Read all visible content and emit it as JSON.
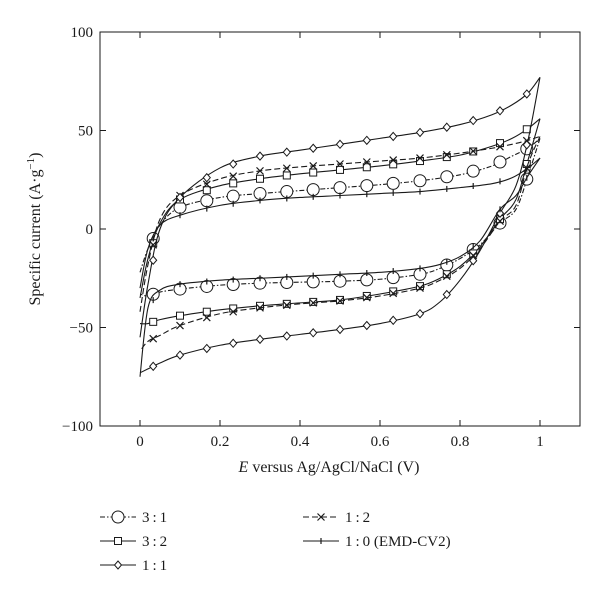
{
  "chart_data": {
    "type": "line",
    "title": "",
    "xlabel": {
      "italic": "E",
      "rest": " versus Ag/AgCl/NaCl (V)"
    },
    "ylabel": {
      "main": "Specific current (A·g",
      "sup": "−1",
      "close": ")"
    },
    "xlim": [
      -0.1,
      1.1
    ],
    "ylim": [
      -100,
      100
    ],
    "xticks": [
      0,
      0.2,
      0.4,
      0.6,
      0.8,
      1
    ],
    "xtick_labels": [
      "0",
      "0.2",
      "0.4",
      "0.6",
      "0.8",
      "1"
    ],
    "yticks": [
      -100,
      -50,
      0,
      50,
      100
    ],
    "ytick_labels": [
      "−100",
      "−50",
      "0",
      "50",
      "100"
    ],
    "grid": false,
    "legend_placement": "below-plot",
    "series": [
      {
        "name": "3 : 1",
        "marker": "circle",
        "dash": "dot-dash",
        "forward": [
          [
            0,
            -22
          ],
          [
            0.02,
            -10
          ],
          [
            0.05,
            2
          ],
          [
            0.1,
            11
          ],
          [
            0.2,
            16
          ],
          [
            0.3,
            18
          ],
          [
            0.4,
            19.5
          ],
          [
            0.5,
            21
          ],
          [
            0.6,
            22.5
          ],
          [
            0.7,
            24.5
          ],
          [
            0.8,
            27.5
          ],
          [
            0.88,
            32
          ],
          [
            0.93,
            37
          ],
          [
            0.97,
            41
          ],
          [
            1,
            46
          ]
        ],
        "reverse": [
          [
            1,
            46
          ],
          [
            0.97,
            27
          ],
          [
            0.94,
            10
          ],
          [
            0.9,
            3
          ],
          [
            0.85,
            -8
          ],
          [
            0.8,
            -15
          ],
          [
            0.75,
            -20
          ],
          [
            0.7,
            -23
          ],
          [
            0.6,
            -25.5
          ],
          [
            0.5,
            -26.5
          ],
          [
            0.4,
            -27
          ],
          [
            0.3,
            -27.5
          ],
          [
            0.2,
            -28.5
          ],
          [
            0.1,
            -30.5
          ],
          [
            0.05,
            -32
          ],
          [
            0.02,
            -34
          ],
          [
            0,
            -33
          ]
        ]
      },
      {
        "name": "3 : 2",
        "marker": "square",
        "dash": "solid",
        "forward": [
          [
            0,
            -35
          ],
          [
            0.02,
            -15
          ],
          [
            0.05,
            3
          ],
          [
            0.1,
            15
          ],
          [
            0.2,
            22
          ],
          [
            0.3,
            25.5
          ],
          [
            0.4,
            28
          ],
          [
            0.5,
            30
          ],
          [
            0.6,
            32
          ],
          [
            0.7,
            34.5
          ],
          [
            0.8,
            37.5
          ],
          [
            0.88,
            42
          ],
          [
            0.93,
            46
          ],
          [
            0.97,
            51
          ],
          [
            1,
            56
          ]
        ],
        "reverse": [
          [
            1,
            56
          ],
          [
            0.97,
            35
          ],
          [
            0.94,
            15
          ],
          [
            0.9,
            5
          ],
          [
            0.85,
            -9
          ],
          [
            0.8,
            -19
          ],
          [
            0.75,
            -25
          ],
          [
            0.7,
            -29
          ],
          [
            0.6,
            -33
          ],
          [
            0.5,
            -36
          ],
          [
            0.4,
            -37.5
          ],
          [
            0.3,
            -39
          ],
          [
            0.2,
            -41
          ],
          [
            0.1,
            -44
          ],
          [
            0.05,
            -46
          ],
          [
            0.02,
            -48
          ],
          [
            0,
            -48
          ]
        ]
      },
      {
        "name": "1 : 2",
        "marker": "cross",
        "dash": "dashed",
        "forward": [
          [
            0,
            -42
          ],
          [
            0.02,
            -18
          ],
          [
            0.05,
            5
          ],
          [
            0.1,
            17
          ],
          [
            0.2,
            25.5
          ],
          [
            0.3,
            29.5
          ],
          [
            0.4,
            31.5
          ],
          [
            0.5,
            33
          ],
          [
            0.6,
            34.5
          ],
          [
            0.7,
            36
          ],
          [
            0.8,
            38.5
          ],
          [
            0.88,
            41
          ],
          [
            0.93,
            43
          ],
          [
            0.97,
            45
          ],
          [
            1,
            47
          ]
        ],
        "reverse": [
          [
            1,
            47
          ],
          [
            0.97,
            33
          ],
          [
            0.94,
            12
          ],
          [
            0.9,
            4
          ],
          [
            0.85,
            -10
          ],
          [
            0.8,
            -20
          ],
          [
            0.75,
            -26
          ],
          [
            0.7,
            -30
          ],
          [
            0.6,
            -34
          ],
          [
            0.5,
            -36.5
          ],
          [
            0.4,
            -38
          ],
          [
            0.3,
            -40
          ],
          [
            0.2,
            -43
          ],
          [
            0.1,
            -49
          ],
          [
            0.05,
            -54
          ],
          [
            0.02,
            -57
          ],
          [
            0,
            -62
          ]
        ]
      },
      {
        "name": "1 : 1",
        "marker": "diamond",
        "dash": "solid",
        "forward": [
          [
            0,
            -55
          ],
          [
            0.02,
            -28
          ],
          [
            0.05,
            0
          ],
          [
            0.1,
            16
          ],
          [
            0.2,
            31
          ],
          [
            0.3,
            37
          ],
          [
            0.4,
            40
          ],
          [
            0.5,
            43
          ],
          [
            0.6,
            46
          ],
          [
            0.7,
            49
          ],
          [
            0.8,
            53
          ],
          [
            0.88,
            58
          ],
          [
            0.93,
            63
          ],
          [
            0.97,
            69
          ],
          [
            1,
            77
          ]
        ],
        "reverse": [
          [
            1,
            77
          ],
          [
            0.97,
            45
          ],
          [
            0.94,
            22
          ],
          [
            0.9,
            8
          ],
          [
            0.85,
            -11
          ],
          [
            0.8,
            -26
          ],
          [
            0.75,
            -37
          ],
          [
            0.7,
            -43
          ],
          [
            0.6,
            -48
          ],
          [
            0.5,
            -51
          ],
          [
            0.4,
            -53.5
          ],
          [
            0.3,
            -56
          ],
          [
            0.2,
            -59
          ],
          [
            0.1,
            -64
          ],
          [
            0.05,
            -68
          ],
          [
            0.02,
            -71
          ],
          [
            0,
            -73
          ]
        ]
      },
      {
        "name": "1 : 0 (EMD-CV2)",
        "marker": "plus",
        "dash": "solid",
        "forward": [
          [
            0,
            -30
          ],
          [
            0.02,
            -10
          ],
          [
            0.05,
            2
          ],
          [
            0.1,
            7
          ],
          [
            0.2,
            12
          ],
          [
            0.3,
            14.5
          ],
          [
            0.4,
            16
          ],
          [
            0.5,
            17
          ],
          [
            0.6,
            18
          ],
          [
            0.7,
            19
          ],
          [
            0.8,
            21
          ],
          [
            0.88,
            23
          ],
          [
            0.93,
            26
          ],
          [
            0.97,
            31
          ],
          [
            1,
            36
          ]
        ],
        "reverse": [
          [
            1,
            36
          ],
          [
            0.97,
            27
          ],
          [
            0.94,
            17
          ],
          [
            0.9,
            10
          ],
          [
            0.85,
            -6
          ],
          [
            0.8,
            -14
          ],
          [
            0.75,
            -18
          ],
          [
            0.7,
            -20
          ],
          [
            0.6,
            -22
          ],
          [
            0.5,
            -23
          ],
          [
            0.4,
            -24
          ],
          [
            0.3,
            -25
          ],
          [
            0.2,
            -26
          ],
          [
            0.1,
            -28
          ],
          [
            0.05,
            -31
          ],
          [
            0.02,
            -40
          ],
          [
            0,
            -75
          ]
        ]
      }
    ],
    "legend_order": [
      0,
      2,
      1,
      4,
      3
    ]
  }
}
